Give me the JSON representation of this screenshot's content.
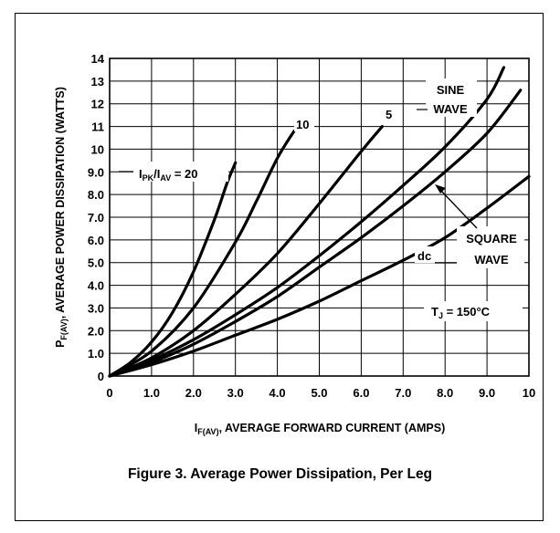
{
  "caption": "Figure 3. Average Power Dissipation, Per Leg",
  "chart_data": {
    "type": "line",
    "xlabel": "I<sub>F(AV)</sub>, AVERAGE FORWARD CURRENT (AMPS)",
    "xlabel_parts": {
      "main": "I",
      "sub": "F(AV)",
      "rest": ", AVERAGE FORWARD CURRENT (AMPS)"
    },
    "ylabel_parts": {
      "main": "P",
      "sub": "F(AV)",
      "rest": ", AVERAGE POWER DISSIPATION (WATTS)"
    },
    "xlim": [
      0,
      10
    ],
    "ylim": [
      0,
      14
    ],
    "x_ticks": [
      "0",
      "1.0",
      "2.0",
      "3.0",
      "4.0",
      "5.0",
      "6.0",
      "7.0",
      "8.0",
      "9.0",
      "10"
    ],
    "y_ticks": [
      "0",
      "1.0",
      "2.0",
      "3.0",
      "4.0",
      "5.0",
      "6.0",
      "7.0",
      "8.0",
      "9.0",
      "10",
      "11",
      "12",
      "13",
      "14"
    ],
    "grid": true,
    "series": [
      {
        "name": "I_PK/I_AV = 20",
        "x": [
          0,
          0.5,
          1.0,
          1.5,
          2.0,
          2.5,
          2.8,
          3.0
        ],
        "y": [
          0,
          0.6,
          1.5,
          2.8,
          4.6,
          6.9,
          8.5,
          9.4
        ]
      },
      {
        "name": "10",
        "x": [
          0,
          1.0,
          2.0,
          3.0,
          3.5,
          4.0,
          4.4
        ],
        "y": [
          0,
          1.1,
          3.0,
          5.9,
          7.7,
          9.6,
          10.8
        ]
      },
      {
        "name": "5",
        "x": [
          0,
          1.0,
          2.0,
          3.0,
          4.0,
          5.0,
          6.0,
          6.5
        ],
        "y": [
          0,
          0.8,
          2.0,
          3.6,
          5.4,
          7.6,
          9.9,
          11.0
        ]
      },
      {
        "name": "SINE WAVE",
        "x": [
          0,
          1.0,
          2.0,
          3.0,
          4.0,
          5.0,
          6.0,
          7.0,
          8.0,
          9.0,
          9.4
        ],
        "y": [
          0,
          0.7,
          1.6,
          2.7,
          3.9,
          5.3,
          6.8,
          8.4,
          10.1,
          12.2,
          13.6
        ]
      },
      {
        "name": "SQUARE WAVE",
        "x": [
          0,
          1.0,
          2.0,
          3.0,
          4.0,
          5.0,
          6.0,
          7.0,
          8.0,
          9.0,
          9.8
        ],
        "y": [
          0,
          0.6,
          1.4,
          2.4,
          3.5,
          4.8,
          6.1,
          7.5,
          9.0,
          10.7,
          12.6
        ]
      },
      {
        "name": "dc",
        "x": [
          0,
          1.0,
          2.0,
          3.0,
          4.0,
          5.0,
          6.0,
          7.0,
          8.0,
          9.0,
          10.0
        ],
        "y": [
          0,
          0.5,
          1.1,
          1.8,
          2.5,
          3.3,
          4.2,
          5.1,
          6.1,
          7.4,
          8.8
        ]
      }
    ],
    "annotations": {
      "ipk_label": {
        "main": "I",
        "sub1": "PK",
        "mid": "/I",
        "sub2": "AV",
        "rest": " = 20"
      },
      "ten": "10",
      "five": "5",
      "sine_1": "SINE",
      "sine_2": "WAVE",
      "square_1": "SQUARE",
      "square_2": "WAVE",
      "dc": "dc",
      "tj": {
        "main": "T",
        "sub": "J",
        "rest": " = 150°C"
      }
    }
  }
}
